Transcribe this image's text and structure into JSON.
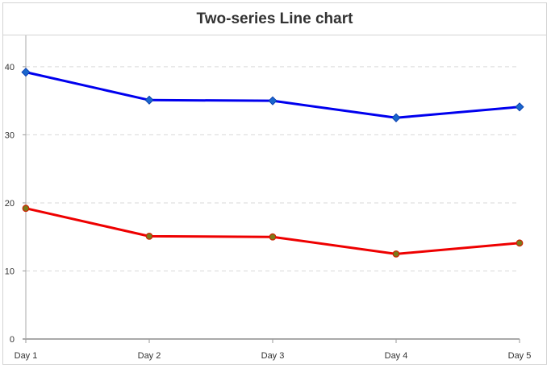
{
  "chart_data": {
    "type": "line",
    "title": "Two-series Line chart",
    "categories": [
      "Day 1",
      "Day 2",
      "Day 3",
      "Day 4",
      "Day 5"
    ],
    "series": [
      {
        "values": [
          39.2,
          35.1,
          35.0,
          32.5,
          34.1
        ],
        "color": "#0000ee",
        "marker_color": "#1a66cc",
        "marker": "diamond"
      },
      {
        "values": [
          19.2,
          15.1,
          15.0,
          12.5,
          14.1
        ],
        "color": "#ee0000",
        "marker_color": "#7a7a1a",
        "marker": "circle"
      }
    ],
    "yticks": [
      0,
      10,
      20,
      30,
      40
    ],
    "ylim": [
      0,
      44.6
    ],
    "grid": true
  }
}
